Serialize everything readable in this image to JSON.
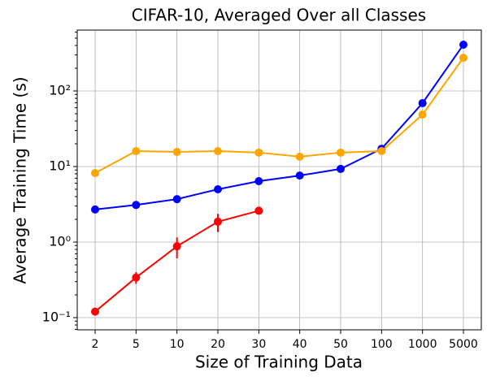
{
  "chart_data": {
    "type": "line",
    "title": "CIFAR-10, Averaged Over all Classes",
    "xlabel": "Size of Training Data",
    "ylabel": "Average Training Time (s)",
    "categories": [
      "2",
      "5",
      "10",
      "20",
      "30",
      "40",
      "50",
      "100",
      "1000",
      "5000"
    ],
    "series": [
      {
        "color": "#0000ff",
        "values": [
          2.7,
          3.1,
          3.7,
          5.0,
          6.4,
          7.6,
          9.3,
          17.2,
          69,
          410
        ]
      },
      {
        "color": "#ffa500",
        "values": [
          8.2,
          16,
          15.6,
          16,
          15.3,
          13.5,
          15.3,
          16,
          48.7,
          275
        ]
      },
      {
        "color": "#ff0000",
        "values": [
          0.12,
          0.34,
          0.88,
          1.86,
          2.6,
          null,
          null,
          null,
          null,
          null
        ],
        "errors": [
          0.01,
          0.06,
          0.27,
          0.5,
          0.15,
          null,
          null,
          null,
          null,
          null
        ]
      }
    ],
    "ylog": true,
    "ylim": [
      0.069,
      640
    ],
    "yticks": [
      {
        "value": 0.1,
        "label": "10⁻¹"
      },
      {
        "value": 1,
        "label": "10⁰"
      },
      {
        "value": 10,
        "label": "10¹"
      },
      {
        "value": 100,
        "label": "10²"
      }
    ],
    "minor_ticks": true,
    "grid": true
  }
}
